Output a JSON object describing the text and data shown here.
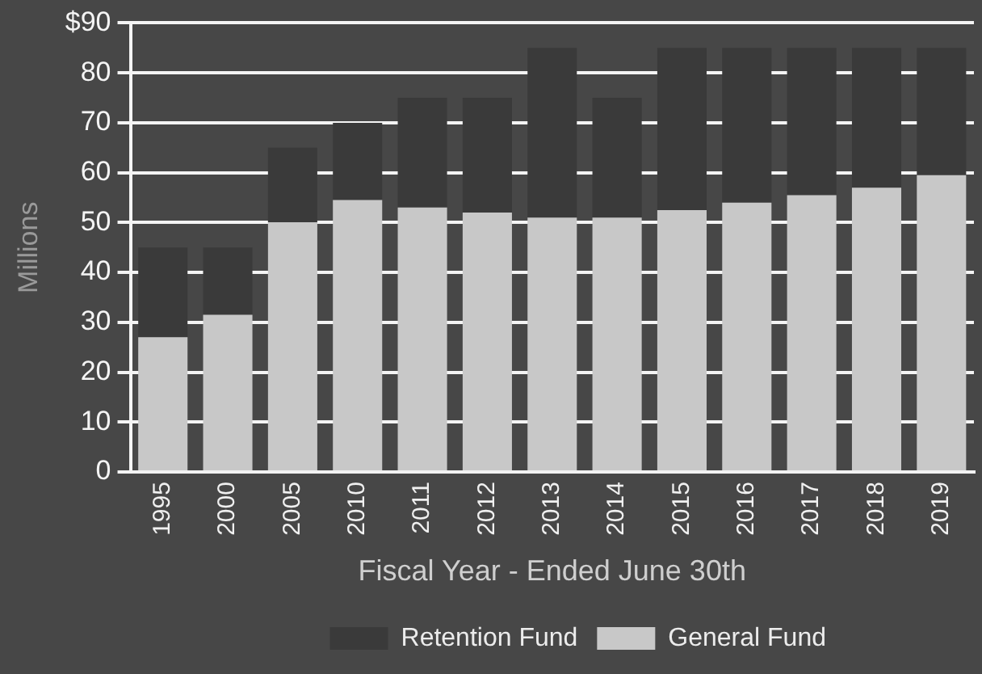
{
  "chart_data": {
    "type": "bar",
    "xlabel": "Fiscal Year - Ended June 30th",
    "ylabel": "Millions",
    "categories": [
      "1995",
      "2000",
      "2005",
      "2010",
      "2011",
      "2012",
      "2013",
      "2014",
      "2015",
      "2016",
      "2017",
      "2018",
      "2019"
    ],
    "series": [
      {
        "name": "General Fund",
        "color": "#c8c8c8",
        "values": [
          27,
          31.5,
          50,
          54.5,
          53,
          52,
          51,
          51,
          52.5,
          54,
          55.5,
          57,
          59.5
        ]
      },
      {
        "name": "Retention Fund",
        "color": "#3a3a3a",
        "values": [
          18,
          13.5,
          15,
          15.5,
          22,
          23,
          34,
          24,
          32.5,
          31,
          29.5,
          28,
          25.5
        ]
      }
    ],
    "stacked": true,
    "ylim": [
      0,
      90
    ],
    "yticks": [
      0,
      10,
      20,
      30,
      40,
      50,
      60,
      70,
      80,
      {
        "value": 90,
        "label": "$90"
      }
    ],
    "grid": "y",
    "legend": "bottom"
  }
}
